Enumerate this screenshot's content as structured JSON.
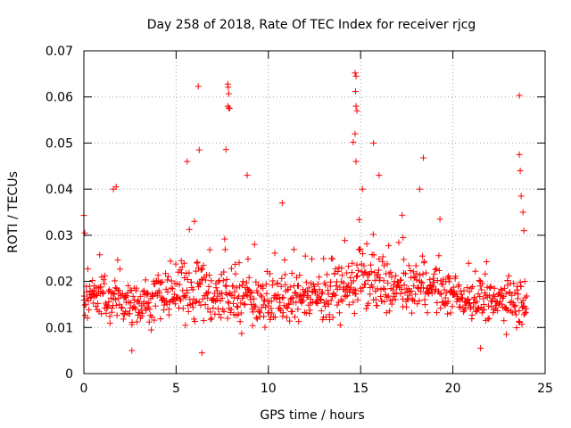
{
  "chart_data": {
    "type": "scatter",
    "title": "Day 258 of 2018, Rate Of TEC Index for receiver rjcg",
    "xlabel": "GPS time / hours",
    "ylabel": "ROTI / TECUs",
    "xlim": [
      0,
      25
    ],
    "ylim": [
      0,
      0.07
    ],
    "xticks": [
      0,
      5,
      10,
      15,
      20,
      25
    ],
    "yticks": [
      0,
      0.01,
      0.02,
      0.03,
      0.04,
      0.05,
      0.06,
      0.07
    ],
    "xtick_labels": [
      "0",
      "5",
      "10",
      "15",
      "20",
      "25"
    ],
    "ytick_labels": [
      "0",
      "0.01",
      "0.02",
      "0.03",
      "0.04",
      "0.05",
      "0.06",
      "0.07"
    ],
    "grid": true,
    "marker": "+",
    "marker_color": "#ff0000",
    "series_profile": {
      "sample_step_hours": 0.025,
      "baseline": [
        [
          0,
          0.016
        ],
        [
          1,
          0.017
        ],
        [
          2,
          0.016
        ],
        [
          3,
          0.015
        ],
        [
          4,
          0.016
        ],
        [
          5,
          0.018
        ],
        [
          6,
          0.019
        ],
        [
          7,
          0.017
        ],
        [
          8,
          0.016
        ],
        [
          9,
          0.016
        ],
        [
          10,
          0.016
        ],
        [
          11,
          0.016
        ],
        [
          12,
          0.017
        ],
        [
          13,
          0.017
        ],
        [
          14,
          0.017
        ],
        [
          15,
          0.021
        ],
        [
          16,
          0.019
        ],
        [
          17,
          0.018
        ],
        [
          18,
          0.019
        ],
        [
          19,
          0.018
        ],
        [
          20,
          0.017
        ],
        [
          21,
          0.016
        ],
        [
          22,
          0.016
        ],
        [
          23,
          0.016
        ],
        [
          24,
          0.016
        ]
      ],
      "spread": [
        [
          0,
          0.006
        ],
        [
          1,
          0.007
        ],
        [
          2,
          0.007
        ],
        [
          3,
          0.006
        ],
        [
          4,
          0.007
        ],
        [
          5,
          0.009
        ],
        [
          6,
          0.012
        ],
        [
          7,
          0.01
        ],
        [
          8,
          0.009
        ],
        [
          9,
          0.008
        ],
        [
          10,
          0.008
        ],
        [
          11,
          0.007
        ],
        [
          12,
          0.007
        ],
        [
          13,
          0.007
        ],
        [
          14,
          0.008
        ],
        [
          15,
          0.011
        ],
        [
          16,
          0.009
        ],
        [
          17,
          0.008
        ],
        [
          18,
          0.008
        ],
        [
          19,
          0.007
        ],
        [
          20,
          0.006
        ],
        [
          21,
          0.006
        ],
        [
          22,
          0.006
        ],
        [
          23,
          0.007
        ],
        [
          24,
          0.008
        ]
      ]
    },
    "notable_points": [
      [
        0.0,
        0.0343
      ],
      [
        0.05,
        0.0305
      ],
      [
        1.6,
        0.04
      ],
      [
        1.75,
        0.0405
      ],
      [
        2.6,
        0.005
      ],
      [
        5.6,
        0.046
      ],
      [
        6.2,
        0.0623
      ],
      [
        6.25,
        0.0485
      ],
      [
        6.4,
        0.0045
      ],
      [
        7.7,
        0.0486
      ],
      [
        7.8,
        0.0628
      ],
      [
        7.82,
        0.0621
      ],
      [
        7.85,
        0.0607
      ],
      [
        7.8,
        0.058
      ],
      [
        7.85,
        0.0576
      ],
      [
        7.9,
        0.0575
      ],
      [
        8.85,
        0.043
      ],
      [
        10.75,
        0.037
      ],
      [
        14.6,
        0.0502
      ],
      [
        14.7,
        0.0652
      ],
      [
        14.75,
        0.0645
      ],
      [
        14.72,
        0.0612
      ],
      [
        14.75,
        0.058
      ],
      [
        14.8,
        0.057
      ],
      [
        14.7,
        0.052
      ],
      [
        14.75,
        0.046
      ],
      [
        15.1,
        0.04
      ],
      [
        15.7,
        0.05
      ],
      [
        16.0,
        0.043
      ],
      [
        17.3,
        0.0295
      ],
      [
        18.4,
        0.0468
      ],
      [
        18.2,
        0.04
      ],
      [
        19.3,
        0.0335
      ],
      [
        21.5,
        0.0055
      ],
      [
        22.9,
        0.0085
      ],
      [
        23.6,
        0.0603
      ],
      [
        23.6,
        0.0475
      ],
      [
        23.65,
        0.044
      ],
      [
        23.7,
        0.0385
      ],
      [
        23.8,
        0.035
      ],
      [
        23.85,
        0.031
      ],
      [
        23.9,
        0.02
      ]
    ]
  }
}
